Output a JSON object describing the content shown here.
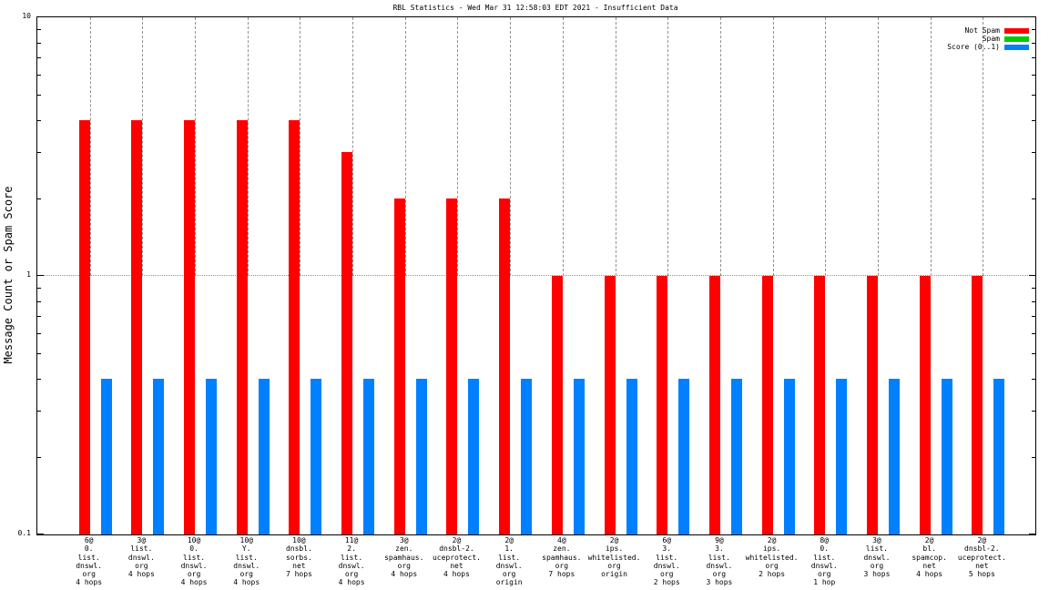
{
  "title": "RBL Statistics - Wed Mar 31 12:58:03 EDT 2021 - Insufficient Data",
  "colors": {
    "not_spam": "#ff0000",
    "spam": "#00cc00",
    "score": "#0080ff",
    "grid": "#909090",
    "frame": "#000000"
  },
  "chart_data": {
    "type": "bar",
    "scale": "log-y",
    "title": "RBL Statistics - Wed Mar 31 12:58:03 EDT 2021 - Insufficient Data",
    "ylabel": "Message Count or Spam Score",
    "xlabel": "",
    "ylim": [
      0.1,
      10
    ],
    "y_tick_values": [
      10,
      1,
      0.1
    ],
    "y_tick_labels": [
      "10",
      "1",
      "0.1"
    ],
    "grid": "dotted horizontal line at y=1, dashed vertical line at each category center ending at y=1",
    "legend_position": "top-right-inside",
    "categories": [
      [
        "6@",
        "0.",
        "list.",
        "dnswl.",
        "org",
        "4 hops"
      ],
      [
        "3@",
        "list.",
        "dnswl.",
        "org",
        "4 hops"
      ],
      [
        "10@",
        "0.",
        "list.",
        "dnswl.",
        "org",
        "4 hops"
      ],
      [
        "10@",
        "Y.",
        "list.",
        "dnswl.",
        "org",
        "4 hops"
      ],
      [
        "10@",
        "dnsbl.",
        "sorbs.",
        "net",
        "7 hops"
      ],
      [
        "11@",
        "2.",
        "list.",
        "dnswl.",
        "org",
        "4 hops"
      ],
      [
        "3@",
        "zen.",
        "spamhaus.",
        "org",
        "4 hops"
      ],
      [
        "2@",
        "dnsbl-2.",
        "uceprotect.",
        "net",
        "4 hops"
      ],
      [
        "2@",
        "1.",
        "list.",
        "dnswl.",
        "org",
        "origin"
      ],
      [
        "4@",
        "zen.",
        "spamhaus.",
        "org",
        "7 hops"
      ],
      [
        "2@",
        "ips.",
        "whitelisted.",
        "org",
        "origin"
      ],
      [
        "6@",
        "3.",
        "list.",
        "dnswl.",
        "org",
        "2 hops"
      ],
      [
        "9@",
        "3.",
        "list.",
        "dnswl.",
        "org",
        "3 hops"
      ],
      [
        "2@",
        "ips.",
        "whitelisted.",
        "org",
        "2 hops"
      ],
      [
        "8@",
        "0.",
        "list.",
        "dnswl.",
        "org",
        "1 hop"
      ],
      [
        "3@",
        "list.",
        "dnswl.",
        "org",
        "3 hops"
      ],
      [
        "2@",
        "bl.",
        "spamcop.",
        "net",
        "4 hops"
      ],
      [
        "2@",
        "dnsbl-2.",
        "uceprotect.",
        "net",
        "5 hops"
      ]
    ],
    "series": [
      {
        "name": "Not Spam",
        "color": "#ff0000",
        "values": [
          4,
          4,
          4,
          4,
          4,
          3,
          2,
          2,
          2,
          1,
          1,
          1,
          1,
          1,
          1,
          1,
          1,
          1
        ]
      },
      {
        "name": "Spam",
        "color": "#00cc00",
        "values": [
          0,
          0,
          0,
          0,
          0,
          0,
          0,
          0,
          0,
          0,
          0,
          0,
          0,
          0,
          0,
          0,
          0,
          0
        ]
      },
      {
        "name": "Score (0..1)",
        "color": "#0080ff",
        "values": [
          0.4,
          0.4,
          0.4,
          0.4,
          0.4,
          0.4,
          0.4,
          0.4,
          0.4,
          0.4,
          0.4,
          0.4,
          0.4,
          0.4,
          0.4,
          0.4,
          0.4,
          0.4
        ]
      }
    ]
  }
}
